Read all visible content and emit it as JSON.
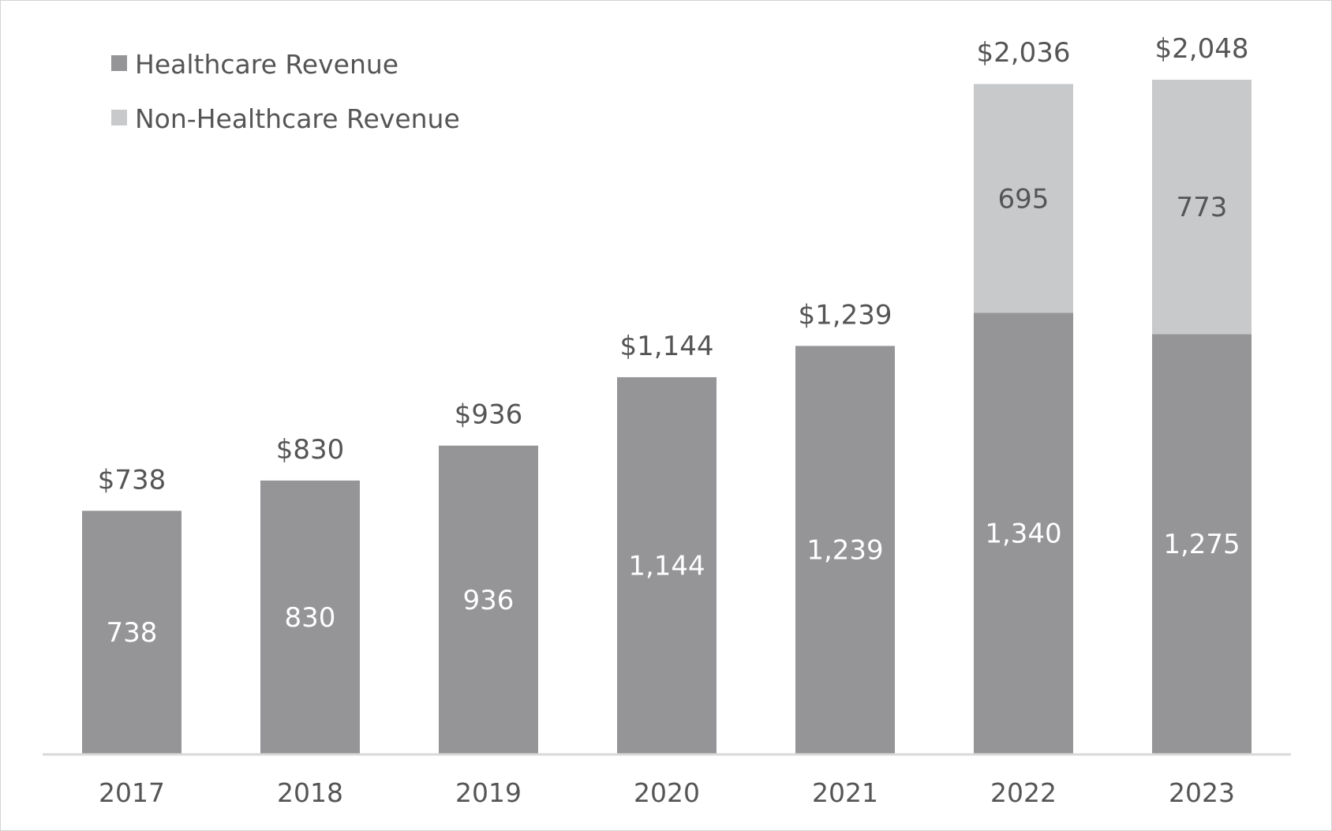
{
  "chart_data": {
    "type": "bar",
    "stacked": true,
    "title": "",
    "xlabel": "",
    "ylabel": "",
    "ylim": [
      0,
      2200
    ],
    "grid": false,
    "legend_position": "top-left",
    "categories": [
      "2017",
      "2018",
      "2019",
      "2020",
      "2021",
      "2022",
      "2023"
    ],
    "series": [
      {
        "name": "Healthcare Revenue",
        "color": "#959598",
        "label_color": "#ffffff",
        "values": [
          738,
          830,
          936,
          1144,
          1239,
          1340,
          1275
        ],
        "labels": [
          "738",
          "830",
          "936",
          "1,144",
          "1,239",
          "1,340",
          "1,275"
        ]
      },
      {
        "name": "Non-Healthcare Revenue",
        "color": "#c8c9cb",
        "label_color": "#555555",
        "values": [
          0,
          0,
          0,
          0,
          0,
          695,
          773
        ],
        "labels": [
          "",
          "",
          "",
          "",
          "",
          "695",
          "773"
        ]
      }
    ],
    "totals": [
      738,
      830,
      936,
      1144,
      1239,
      2036,
      2048
    ],
    "total_labels": [
      "$738",
      "$830",
      "$936",
      "$1,144",
      "$1,239",
      "$2,036",
      "$2,048"
    ]
  },
  "colors": {
    "axis": "#d9d9d9",
    "text": "#555555",
    "border": "#d4d4d4"
  }
}
